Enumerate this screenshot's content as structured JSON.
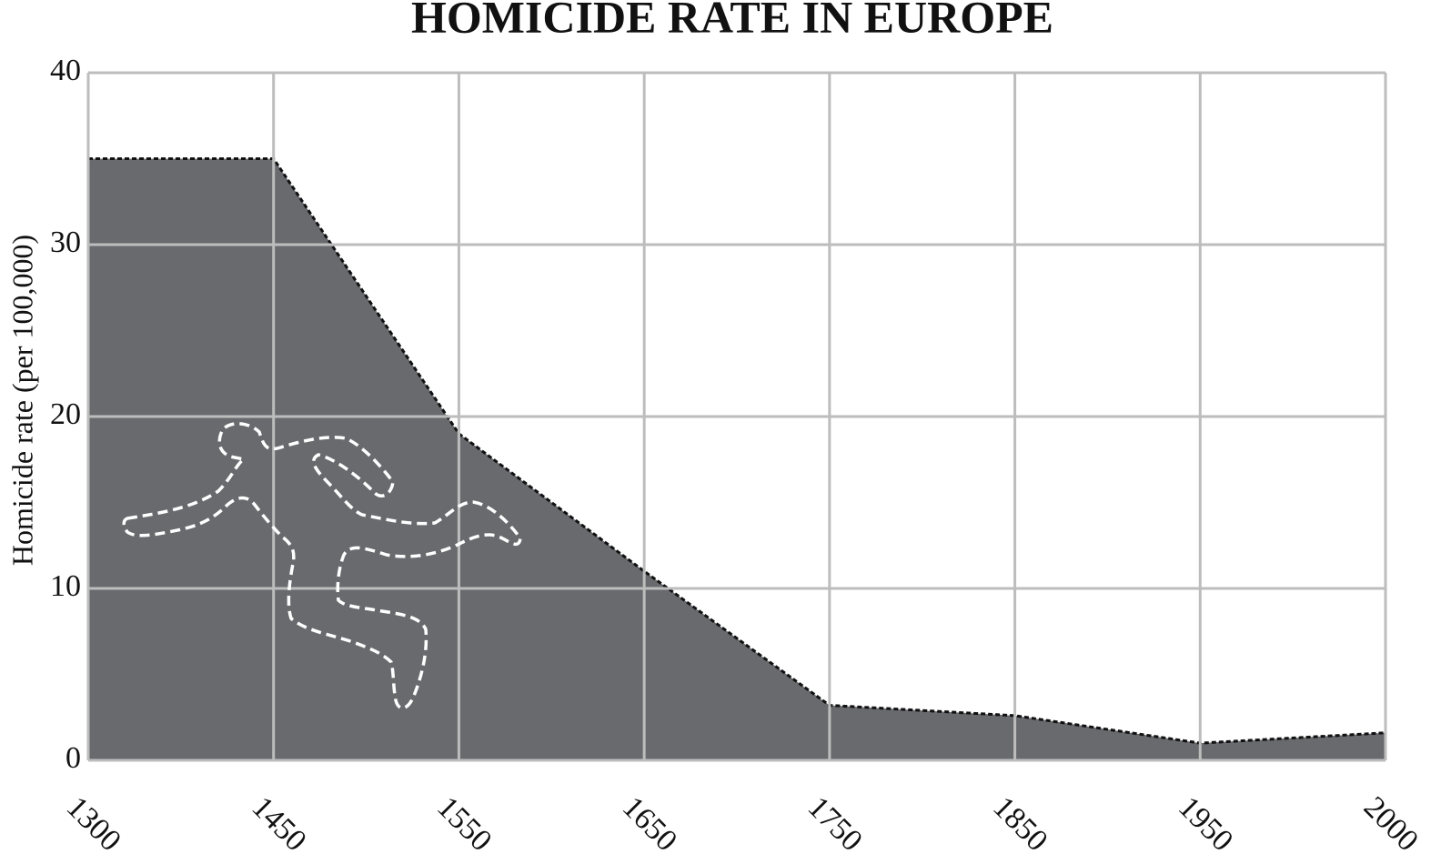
{
  "chart_data": {
    "type": "area",
    "title": "HOMICIDE RATE IN EUROPE",
    "y_label": "Homicide rate (per 100,000)",
    "categories": [
      "1300",
      "1450",
      "1550",
      "1650",
      "1750",
      "1850",
      "1950",
      "2000"
    ],
    "values": [
      35,
      35,
      19,
      11,
      3.2,
      2.6,
      1,
      1.6
    ],
    "color": "#686a6e",
    "ylim": [
      0,
      40
    ],
    "yticks": [
      0,
      10,
      20,
      30,
      40
    ],
    "grid": true
  }
}
